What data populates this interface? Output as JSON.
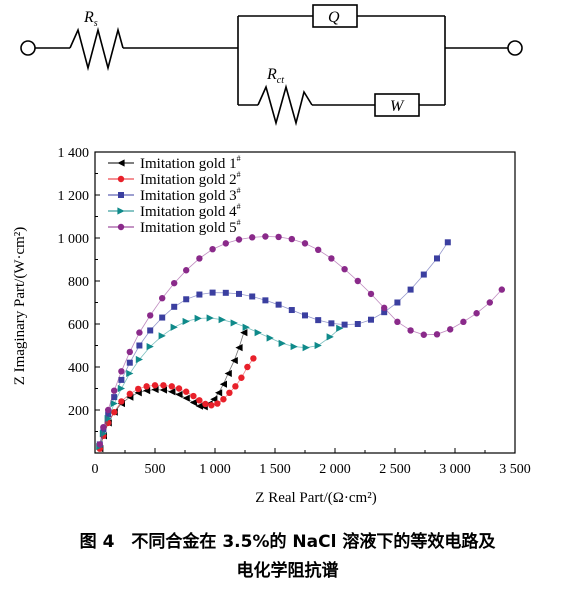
{
  "circuit": {
    "rs_label": "R",
    "rs_sub": "s",
    "q_label": "Q",
    "rct_label": "R",
    "rct_sub": "ct",
    "w_label": "W"
  },
  "chart_data": {
    "type": "scatter",
    "xlabel": "Z Real Part/(Ω·cm²)",
    "ylabel": "Z Imaginary Part/(W·cm²)",
    "xlim": [
      0,
      3500
    ],
    "ylim": [
      0,
      1400
    ],
    "x_ticks": [
      "0",
      "500",
      "1 000",
      "1 500",
      "2 000",
      "2 500",
      "3 000",
      "3 500"
    ],
    "y_ticks": [
      "200",
      "400",
      "600",
      "800",
      "1 000",
      "1 200",
      "1 400"
    ],
    "legend_position": "top-left",
    "series": [
      {
        "name": "Imitation gold 1",
        "sup": "#",
        "color": "#000000",
        "marker": "triangle-left",
        "points": [
          [
            40,
            20
          ],
          [
            70,
            80
          ],
          [
            110,
            140
          ],
          [
            160,
            190
          ],
          [
            220,
            230
          ],
          [
            290,
            260
          ],
          [
            360,
            280
          ],
          [
            430,
            290
          ],
          [
            500,
            295
          ],
          [
            570,
            293
          ],
          [
            640,
            285
          ],
          [
            700,
            272
          ],
          [
            760,
            255
          ],
          [
            820,
            235
          ],
          [
            870,
            218
          ],
          [
            910,
            215
          ],
          [
            950,
            228
          ],
          [
            990,
            250
          ],
          [
            1030,
            280
          ],
          [
            1070,
            320
          ],
          [
            1110,
            370
          ],
          [
            1160,
            430
          ],
          [
            1200,
            490
          ],
          [
            1240,
            560
          ]
        ]
      },
      {
        "name": "Imitation gold 2",
        "sup": "#",
        "color": "#e8202a",
        "marker": "circle",
        "points": [
          [
            40,
            20
          ],
          [
            70,
            80
          ],
          [
            110,
            140
          ],
          [
            160,
            190
          ],
          [
            220,
            240
          ],
          [
            290,
            275
          ],
          [
            360,
            298
          ],
          [
            430,
            310
          ],
          [
            500,
            315
          ],
          [
            570,
            315
          ],
          [
            640,
            310
          ],
          [
            700,
            300
          ],
          [
            760,
            285
          ],
          [
            820,
            265
          ],
          [
            870,
            245
          ],
          [
            920,
            228
          ],
          [
            970,
            222
          ],
          [
            1020,
            230
          ],
          [
            1070,
            250
          ],
          [
            1120,
            280
          ],
          [
            1170,
            310
          ],
          [
            1220,
            350
          ],
          [
            1270,
            400
          ],
          [
            1320,
            440
          ]
        ]
      },
      {
        "name": "Imitation gold 3",
        "sup": "#",
        "color": "#3b3fa0",
        "marker": "square",
        "points": [
          [
            40,
            40
          ],
          [
            70,
            110
          ],
          [
            110,
            180
          ],
          [
            160,
            260
          ],
          [
            220,
            340
          ],
          [
            290,
            420
          ],
          [
            370,
            500
          ],
          [
            460,
            570
          ],
          [
            560,
            630
          ],
          [
            660,
            680
          ],
          [
            760,
            715
          ],
          [
            870,
            737
          ],
          [
            980,
            746
          ],
          [
            1090,
            745
          ],
          [
            1200,
            740
          ],
          [
            1310,
            728
          ],
          [
            1420,
            710
          ],
          [
            1530,
            690
          ],
          [
            1640,
            665
          ],
          [
            1750,
            640
          ],
          [
            1860,
            618
          ],
          [
            1970,
            603
          ],
          [
            2080,
            597
          ],
          [
            2190,
            600
          ],
          [
            2300,
            620
          ],
          [
            2410,
            655
          ],
          [
            2520,
            700
          ],
          [
            2630,
            760
          ],
          [
            2740,
            830
          ],
          [
            2850,
            905
          ],
          [
            2940,
            980
          ]
        ]
      },
      {
        "name": "Imitation gold 4",
        "sup": "#",
        "color": "#0f8a8a",
        "marker": "triangle-right",
        "points": [
          [
            40,
            30
          ],
          [
            70,
            90
          ],
          [
            110,
            160
          ],
          [
            160,
            230
          ],
          [
            220,
            300
          ],
          [
            290,
            370
          ],
          [
            370,
            435
          ],
          [
            460,
            495
          ],
          [
            560,
            545
          ],
          [
            660,
            585
          ],
          [
            760,
            612
          ],
          [
            860,
            626
          ],
          [
            960,
            628
          ],
          [
            1060,
            620
          ],
          [
            1160,
            605
          ],
          [
            1260,
            585
          ],
          [
            1360,
            560
          ],
          [
            1460,
            535
          ],
          [
            1560,
            510
          ],
          [
            1660,
            495
          ],
          [
            1760,
            490
          ],
          [
            1860,
            500
          ],
          [
            1960,
            540
          ],
          [
            2040,
            580
          ]
        ]
      },
      {
        "name": "Imitation gold 5",
        "sup": "#",
        "color": "#8a2a8a",
        "marker": "circle",
        "points": [
          [
            40,
            40
          ],
          [
            70,
            120
          ],
          [
            110,
            200
          ],
          [
            160,
            290
          ],
          [
            220,
            380
          ],
          [
            290,
            470
          ],
          [
            370,
            560
          ],
          [
            460,
            640
          ],
          [
            560,
            720
          ],
          [
            660,
            790
          ],
          [
            760,
            850
          ],
          [
            870,
            905
          ],
          [
            980,
            948
          ],
          [
            1090,
            975
          ],
          [
            1200,
            993
          ],
          [
            1310,
            1003
          ],
          [
            1420,
            1007
          ],
          [
            1530,
            1005
          ],
          [
            1640,
            995
          ],
          [
            1750,
            975
          ],
          [
            1860,
            945
          ],
          [
            1970,
            905
          ],
          [
            2080,
            855
          ],
          [
            2190,
            800
          ],
          [
            2300,
            740
          ],
          [
            2410,
            675
          ],
          [
            2520,
            610
          ],
          [
            2630,
            570
          ],
          [
            2740,
            550
          ],
          [
            2850,
            552
          ],
          [
            2960,
            575
          ],
          [
            3070,
            610
          ],
          [
            3180,
            650
          ],
          [
            3290,
            700
          ],
          [
            3390,
            760
          ]
        ]
      }
    ]
  },
  "caption": {
    "line1": "图 4　不同合金在 3.5%的 NaCl 溶液下的等效电路及",
    "line2": "电化学阻抗谱"
  }
}
